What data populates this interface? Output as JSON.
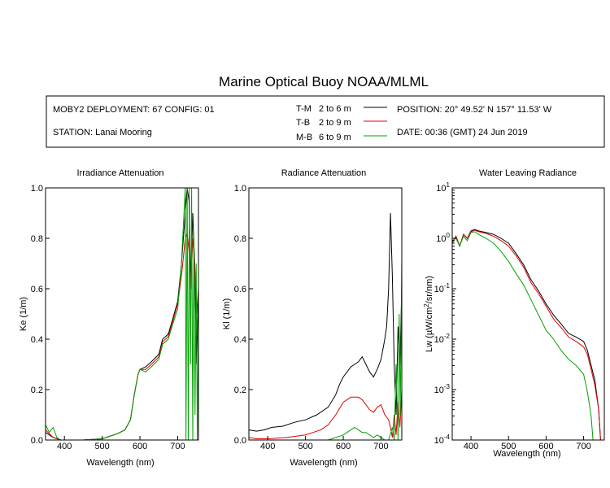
{
  "title": "Marine Optical Buoy NOAA/MLML",
  "info": {
    "deployment": "MOBY2 DEPLOYMENT: 67 CONFIG: 01",
    "station": "STATION: Lanai Mooring",
    "position": "POSITION: 20° 49.52' N   157° 11.53' W",
    "date": "DATE: 00:36 (GMT) 24 Jun 2019"
  },
  "legend": [
    {
      "code": "T-M",
      "range": "2 to 6  m",
      "color": "#000000"
    },
    {
      "code": "T-B",
      "range": "2 to 9  m",
      "color": "#e00000"
    },
    {
      "code": "M-B",
      "range": "6 to 9  m",
      "color": "#00a000"
    }
  ],
  "chart_data": [
    {
      "type": "line",
      "title": "Irradiance Attenuation",
      "xlabel": "Wavelength (nm)",
      "ylabel": "Ke  (1/m)",
      "xlim": [
        350,
        755
      ],
      "ylim": [
        0,
        1.0
      ],
      "xticks": [
        400,
        500,
        600,
        700
      ],
      "yticks": [
        0.0,
        0.2,
        0.4,
        0.6,
        0.8,
        1.0
      ],
      "ytick_labels": [
        "0.0",
        "0.2",
        "0.4",
        "0.6",
        "0.8",
        "1.0"
      ],
      "series": [
        {
          "name": "T-M",
          "color": "#000000",
          "x": [
            350,
            370,
            390,
            450,
            500,
            520,
            540,
            560,
            575,
            585,
            595,
            600,
            615,
            630,
            650,
            660,
            675,
            685,
            700,
            710,
            720,
            725,
            730,
            735,
            740,
            745,
            750,
            755
          ],
          "y": [
            0.03,
            0.01,
            0.0,
            0.0,
            0.005,
            0.015,
            0.025,
            0.04,
            0.08,
            0.18,
            0.26,
            0.28,
            0.29,
            0.31,
            0.34,
            0.4,
            0.42,
            0.47,
            0.55,
            0.7,
            0.9,
            1.0,
            0.95,
            0.6,
            0.9,
            0.7,
            0.3,
            0.6
          ]
        },
        {
          "name": "T-B",
          "color": "#e00000",
          "x": [
            350,
            370,
            390,
            450,
            500,
            520,
            540,
            560,
            575,
            585,
            595,
            600,
            615,
            630,
            650,
            660,
            675,
            685,
            700,
            710,
            720,
            725,
            730,
            735,
            740,
            745,
            750,
            755
          ],
          "y": [
            0.04,
            0.01,
            0.0,
            0.0,
            0.005,
            0.015,
            0.025,
            0.04,
            0.08,
            0.18,
            0.26,
            0.28,
            0.28,
            0.3,
            0.33,
            0.39,
            0.41,
            0.46,
            0.54,
            0.65,
            0.8,
            0.82,
            0.75,
            0.6,
            0.8,
            0.7,
            0.5,
            0.6
          ]
        },
        {
          "name": "M-B",
          "color": "#00a000",
          "x": [
            350,
            360,
            370,
            380,
            390,
            450,
            500,
            520,
            540,
            560,
            575,
            585,
            595,
            600,
            615,
            630,
            650,
            660,
            675,
            685,
            700,
            710,
            715,
            720,
            722,
            725,
            728,
            731,
            734,
            737,
            740,
            743,
            746,
            749,
            752,
            755
          ],
          "y": [
            0.06,
            0.03,
            0.05,
            0.01,
            0.0,
            0.0,
            0.005,
            0.015,
            0.025,
            0.04,
            0.08,
            0.18,
            0.26,
            0.28,
            0.27,
            0.29,
            0.32,
            0.38,
            0.4,
            0.45,
            0.52,
            0.7,
            0.85,
            1.0,
            0.0,
            1.0,
            0.0,
            1.0,
            0.3,
            1.0,
            0.0,
            0.8,
            0.1,
            0.7,
            0.0,
            0.5
          ]
        }
      ]
    },
    {
      "type": "line",
      "title": "Radiance Attenuation",
      "xlabel": "Wavelength (nm)",
      "ylabel": "Kl  (1/m)",
      "xlim": [
        350,
        755
      ],
      "ylim": [
        0,
        1.0
      ],
      "xticks": [
        400,
        500,
        600,
        700
      ],
      "yticks": [
        0.0,
        0.2,
        0.4,
        0.6,
        0.8,
        1.0
      ],
      "ytick_labels": [
        "0.0",
        "0.2",
        "0.4",
        "0.6",
        "0.8",
        "1.0"
      ],
      "series": [
        {
          "name": "T-M",
          "color": "#000000",
          "x": [
            350,
            370,
            390,
            410,
            440,
            470,
            500,
            530,
            560,
            580,
            590,
            600,
            610,
            620,
            630,
            640,
            650,
            660,
            670,
            680,
            690,
            700,
            710,
            715,
            720,
            725,
            730,
            735,
            740,
            745,
            750,
            755
          ],
          "y": [
            0.04,
            0.035,
            0.04,
            0.05,
            0.055,
            0.07,
            0.08,
            0.1,
            0.13,
            0.18,
            0.22,
            0.25,
            0.27,
            0.29,
            0.3,
            0.31,
            0.33,
            0.3,
            0.27,
            0.25,
            0.28,
            0.32,
            0.4,
            0.45,
            0.6,
            0.9,
            0.65,
            0.3,
            0.1,
            0.45,
            0.3,
            0.6
          ]
        },
        {
          "name": "T-B",
          "color": "#e00000",
          "x": [
            350,
            370,
            400,
            450,
            500,
            540,
            560,
            580,
            600,
            610,
            620,
            640,
            650,
            660,
            670,
            680,
            690,
            700,
            710,
            720,
            725,
            730,
            735,
            740,
            745,
            750,
            755
          ],
          "y": [
            0.01,
            0.005,
            0.005,
            0.01,
            0.02,
            0.04,
            0.06,
            0.1,
            0.15,
            0.16,
            0.17,
            0.17,
            0.16,
            0.14,
            0.12,
            0.11,
            0.13,
            0.14,
            0.1,
            0.08,
            0.05,
            0.01,
            0.1,
            0.02,
            0.15,
            0.05,
            0.2
          ]
        },
        {
          "name": "M-B",
          "color": "#00a000",
          "x": [
            350,
            500,
            560,
            580,
            600,
            610,
            620,
            630,
            640,
            650,
            660,
            670,
            680,
            690,
            700,
            710,
            720,
            730,
            735,
            740,
            745,
            748,
            751,
            755
          ],
          "y": [
            0.0,
            0.0,
            0.0,
            0.01,
            0.02,
            0.03,
            0.04,
            0.05,
            0.04,
            0.03,
            0.03,
            0.02,
            0.01,
            0.02,
            0.01,
            0.0,
            0.0,
            0.05,
            0.0,
            0.3,
            0.0,
            0.5,
            0.1,
            0.72
          ]
        }
      ]
    },
    {
      "type": "line",
      "title": "Water Leaving Radiance",
      "xlabel": "Wavelength (nm)",
      "ylabel": "Lw (µW/cm²/sr/nm)",
      "ylabel_parts": [
        "Lw  (",
        "µ",
        "W/cm",
        "2",
        "/sr/nm)"
      ],
      "yscale": "log",
      "xlim": [
        350,
        755
      ],
      "ylim": [
        0.0001,
        10
      ],
      "xticks": [
        400,
        500,
        600,
        700
      ],
      "yticks": [
        0.0001,
        0.001,
        0.01,
        0.1,
        1,
        10
      ],
      "ytick_base": "10",
      "ytick_exponents": [
        "-4",
        "-3",
        "-2",
        "-1",
        "0",
        "1"
      ],
      "series": [
        {
          "name": "T-M",
          "color": "#000000",
          "x": [
            350,
            360,
            370,
            380,
            390,
            400,
            410,
            420,
            440,
            460,
            480,
            500,
            520,
            540,
            560,
            580,
            600,
            620,
            640,
            660,
            680,
            700,
            710,
            720,
            730,
            740,
            745
          ],
          "y": [
            0.8,
            1.1,
            0.7,
            1.2,
            1.0,
            1.4,
            1.5,
            1.4,
            1.3,
            1.2,
            1.0,
            0.8,
            0.5,
            0.3,
            0.15,
            0.09,
            0.05,
            0.03,
            0.02,
            0.013,
            0.011,
            0.009,
            0.006,
            0.003,
            0.0015,
            0.0004,
            0.0001
          ]
        },
        {
          "name": "T-B",
          "color": "#e00000",
          "x": [
            350,
            360,
            370,
            380,
            390,
            400,
            410,
            420,
            440,
            460,
            480,
            500,
            520,
            540,
            560,
            580,
            600,
            620,
            640,
            660,
            680,
            700,
            710,
            720,
            730,
            740,
            745
          ],
          "y": [
            0.8,
            1.1,
            0.7,
            1.2,
            1.0,
            1.35,
            1.45,
            1.35,
            1.25,
            1.1,
            0.9,
            0.7,
            0.45,
            0.27,
            0.13,
            0.08,
            0.045,
            0.025,
            0.017,
            0.011,
            0.009,
            0.007,
            0.005,
            0.0025,
            0.0012,
            0.0004,
            0.0001
          ]
        },
        {
          "name": "M-B",
          "color": "#00a000",
          "x": [
            350,
            360,
            370,
            380,
            390,
            400,
            410,
            420,
            440,
            460,
            480,
            500,
            520,
            540,
            560,
            580,
            600,
            620,
            640,
            660,
            680,
            700,
            710,
            720,
            725
          ],
          "y": [
            0.9,
            1.0,
            0.7,
            1.1,
            0.9,
            1.3,
            1.35,
            1.2,
            1.0,
            0.8,
            0.55,
            0.35,
            0.2,
            0.12,
            0.06,
            0.03,
            0.015,
            0.01,
            0.006,
            0.004,
            0.003,
            0.002,
            0.0009,
            0.0003,
            0.0001
          ]
        }
      ]
    }
  ]
}
